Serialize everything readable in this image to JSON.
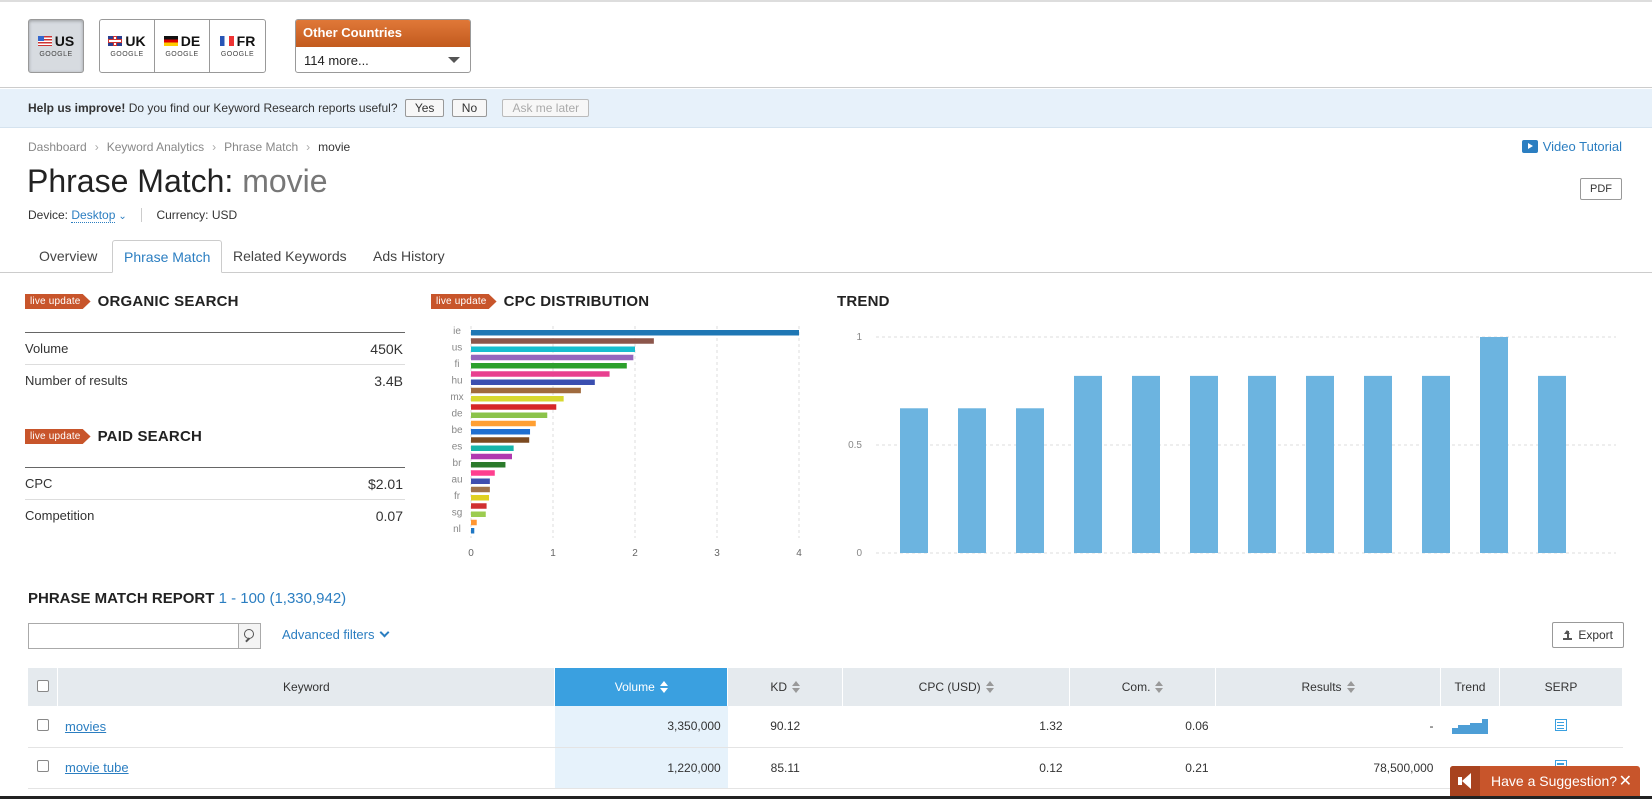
{
  "countries": {
    "buttons": [
      {
        "code": "US",
        "engine": "GOOGLE",
        "active": true
      },
      {
        "code": "UK",
        "engine": "GOOGLE"
      },
      {
        "code": "DE",
        "engine": "GOOGLE"
      },
      {
        "code": "FR",
        "engine": "GOOGLE"
      }
    ],
    "other_label": "Other Countries",
    "other_value": "114 more..."
  },
  "feedback": {
    "bold": "Help us improve!",
    "text": "Do you find our Keyword Research reports useful?",
    "yes": "Yes",
    "no": "No",
    "later": "Ask me later"
  },
  "breadcrumb": [
    "Dashboard",
    "Keyword Analytics",
    "Phrase Match",
    "movie"
  ],
  "video_tutorial": "Video Tutorial",
  "page": {
    "title_prefix": "Phrase Match:",
    "keyword": "movie",
    "pdf": "PDF",
    "device_label": "Device:",
    "device_value": "Desktop",
    "currency": "Currency: USD"
  },
  "tabs": [
    "Overview",
    "Phrase Match",
    "Related Keywords",
    "Ads History"
  ],
  "live_badge": "live update",
  "organic": {
    "title": "ORGANIC SEARCH",
    "rows": [
      {
        "label": "Volume",
        "value": "450K"
      },
      {
        "label": "Number of results",
        "value": "3.4B"
      }
    ]
  },
  "paid": {
    "title": "PAID SEARCH",
    "rows": [
      {
        "label": "CPC",
        "value": "$2.01"
      },
      {
        "label": "Competition",
        "value": "0.07"
      }
    ]
  },
  "cpc_title": "CPC DISTRIBUTION",
  "trend_title": "TREND",
  "chart_data": [
    {
      "type": "bar",
      "orientation": "horizontal",
      "title": "CPC DISTRIBUTION",
      "tick_labels_y": [
        "ie",
        "us",
        "fi",
        "hu",
        "mx",
        "de",
        "be",
        "es",
        "br",
        "au",
        "fr",
        "sg",
        "nl"
      ],
      "values": [
        4.0,
        2.23,
        2.0,
        1.98,
        1.9,
        1.69,
        1.51,
        1.34,
        1.13,
        1.04,
        0.93,
        0.79,
        0.72,
        0.71,
        0.52,
        0.5,
        0.42,
        0.29,
        0.23,
        0.23,
        0.22,
        0.19,
        0.18,
        0.07,
        0.04
      ],
      "colors": [
        "#1f77b4",
        "#8c564b",
        "#17becf",
        "#9467bd",
        "#2ca02c",
        "#e8408f",
        "#3b4fb0",
        "#a06b3e",
        "#d8d830",
        "#d62728",
        "#8bc34a",
        "#ff9f32",
        "#1f6fd0",
        "#7b4a20",
        "#17b5aa",
        "#b03ab0",
        "#2a7a2a",
        "#ff3f8f",
        "#3f4fb0",
        "#a0734a",
        "#e0d020",
        "#d03030",
        "#9ccc50",
        "#ff9632",
        "#1f77c4"
      ],
      "xlim": [
        0,
        4
      ],
      "xticks": [
        "0",
        "1",
        "2",
        "3",
        "4"
      ]
    },
    {
      "type": "bar",
      "title": "TREND",
      "values": [
        0.67,
        0.67,
        0.67,
        0.82,
        0.82,
        0.82,
        0.82,
        0.82,
        0.82,
        0.82,
        1.0,
        0.82
      ],
      "ylim": [
        0,
        1
      ],
      "yticks": [
        "0",
        "0.5",
        "1"
      ],
      "color": "#6cb4e0"
    }
  ],
  "report": {
    "title": "PHRASE MATCH REPORT",
    "count": "1 - 100 (1,330,942)",
    "advanced": "Advanced filters",
    "export": "Export",
    "columns": [
      "Keyword",
      "Volume",
      "KD",
      "CPC (USD)",
      "Com.",
      "Results",
      "Trend",
      "SERP"
    ],
    "rows": [
      {
        "keyword": "movies",
        "volume": "3,350,000",
        "kd": "90.12",
        "cpc": "1.32",
        "com": "0.06",
        "results": "-"
      },
      {
        "keyword": "movie tube",
        "volume": "1,220,000",
        "kd": "85.11",
        "cpc": "0.12",
        "com": "0.21",
        "results": "78,500,000"
      }
    ]
  },
  "suggestion": "Have a Suggestion?"
}
